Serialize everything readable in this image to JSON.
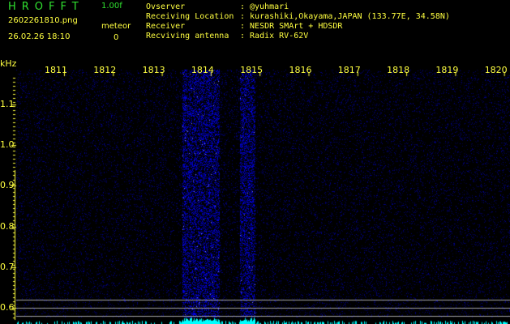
{
  "header": {
    "app_title": "HROFFT",
    "version": "1.00f",
    "filename": "2602261810.png",
    "datetime": "26.02.26 18:10",
    "meteor_label": "meteor",
    "meteor_count": "0"
  },
  "info": [
    {
      "label": "Ovserver",
      "value": ": @yuhmari"
    },
    {
      "label": "Receiving Location",
      "value": ": kurashiki,Okayama,JAPAN (133.77E, 34.58N)"
    },
    {
      "label": "Receiver",
      "value": ": NESDR SMArt + HDSDR"
    },
    {
      "label": "Recviving antenna",
      "value": ": Radix RV-62V"
    }
  ],
  "spectrogram": {
    "y_unit": "kHz",
    "x_ticks": [
      "1811",
      "1812",
      "1813",
      "1814",
      "1815",
      "1816",
      "1817",
      "1818",
      "1819",
      "1820"
    ],
    "y_ticks": [
      "1.1",
      "1.0",
      "0.9",
      "0.8",
      "0.7",
      "0.6"
    ],
    "noise_color": "#1a1aff",
    "signal_color": "#00ffff",
    "grid_line_color": "#a0a0a0"
  }
}
